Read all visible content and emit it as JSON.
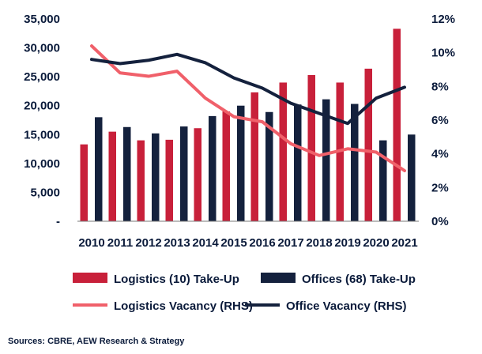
{
  "chart_data": {
    "type": "bar",
    "categories": [
      "2010",
      "2011",
      "2012",
      "2013",
      "2014",
      "2015",
      "2016",
      "2017",
      "2018",
      "2019",
      "2020",
      "2021"
    ],
    "series": [
      {
        "name": "Logistics (10) Take-Up",
        "kind": "bar",
        "axis": "left",
        "color": "#c8203a",
        "values": [
          13300,
          15500,
          14000,
          14100,
          16100,
          19000,
          22300,
          24000,
          25300,
          24000,
          26400,
          33300
        ]
      },
      {
        "name": "Offices (68) Take-Up",
        "kind": "bar",
        "axis": "left",
        "color": "#14213d",
        "values": [
          18000,
          16300,
          15200,
          16400,
          18200,
          20000,
          18900,
          20200,
          21100,
          20300,
          14000,
          15000
        ]
      },
      {
        "name": "Logistics Vacancy (RHS)",
        "kind": "line",
        "axis": "right",
        "color": "#f0606a",
        "values": [
          10.4,
          8.8,
          8.6,
          8.9,
          7.3,
          6.2,
          5.9,
          4.6,
          3.9,
          4.3,
          4.1,
          3.0
        ]
      },
      {
        "name": "Office Vacancy (RHS)",
        "kind": "line",
        "axis": "right",
        "color": "#14213d",
        "values": [
          9.6,
          9.35,
          9.55,
          9.9,
          9.4,
          8.5,
          7.9,
          7.0,
          6.4,
          5.8,
          7.3,
          7.95
        ]
      }
    ],
    "y_left": {
      "ylim": [
        0,
        35000
      ],
      "ticks": [
        "-",
        "5,000",
        "10,000",
        "15,000",
        "20,000",
        "25,000",
        "30,000",
        "35,000"
      ]
    },
    "y_right": {
      "ylim": [
        0,
        12
      ],
      "ticks": [
        "0%",
        "2%",
        "4%",
        "6%",
        "8%",
        "10%",
        "12%"
      ]
    },
    "grid": false,
    "legend_position": "bottom"
  },
  "source_note": "Sources: CBRE, AEW Research & Strategy"
}
